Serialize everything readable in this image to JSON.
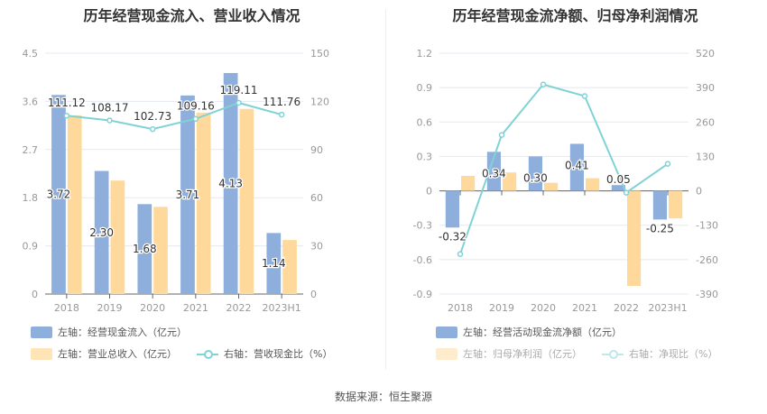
{
  "footer": "数据来源：恒生聚源",
  "chart_data": [
    {
      "type": "bar",
      "title": "历年经营现金流入、营业收入情况",
      "categories": [
        "2018",
        "2019",
        "2020",
        "2021",
        "2022",
        "2023H1"
      ],
      "y_left": {
        "range": [
          0,
          4.5
        ],
        "ticks": [
          "0",
          "0.9",
          "1.8",
          "2.7",
          "3.6",
          "4.5"
        ]
      },
      "y_right": {
        "range": [
          0,
          150
        ],
        "ticks": [
          "0",
          "30",
          "60",
          "90",
          "120",
          "150"
        ]
      },
      "grid": true,
      "legend_placement": "bottom-left",
      "series": [
        {
          "name": "左轴：经营现金流入（亿元）",
          "axis": "left",
          "kind": "bar",
          "color": "#8eaedc",
          "values": [
            3.72,
            2.3,
            1.68,
            3.71,
            4.13,
            1.14
          ],
          "labels": [
            "3.72",
            "2.30",
            "1.68",
            "3.71",
            "4.13",
            "1.14"
          ]
        },
        {
          "name": "左轴：营业总收入（亿元）",
          "axis": "left",
          "kind": "bar",
          "color": "#ffd99b",
          "values": [
            3.34,
            2.12,
            1.63,
            3.39,
            3.46,
            1.01
          ]
        },
        {
          "name": "右轴：营收现金比（%）",
          "axis": "right",
          "kind": "line",
          "color": "#7fd3d6",
          "values": [
            111.12,
            108.17,
            102.73,
            109.16,
            119.11,
            111.76
          ],
          "labels": [
            "111.12",
            "108.17",
            "102.73",
            "109.16",
            "119.11",
            "111.76"
          ]
        }
      ]
    },
    {
      "type": "bar",
      "title": "历年经营现金流净额、归母净利润情况",
      "categories": [
        "2018",
        "2019",
        "2020",
        "2021",
        "2022",
        "2023H1"
      ],
      "y_left": {
        "range": [
          -0.9,
          1.2
        ],
        "ticks": [
          "-0.9",
          "-0.6",
          "-0.3",
          "0",
          "0.3",
          "0.6",
          "0.9",
          "1.2"
        ]
      },
      "y_right": {
        "range": [
          -390,
          520
        ],
        "ticks": [
          "-390",
          "-260",
          "-130",
          "0",
          "130",
          "260",
          "390",
          "520"
        ]
      },
      "grid": true,
      "legend_placement": "bottom-left",
      "series": [
        {
          "name": "左轴：经营活动现金流净额（亿元）",
          "axis": "left",
          "kind": "bar",
          "color": "#8eaedc",
          "values": [
            -0.32,
            0.34,
            0.3,
            0.41,
            0.05,
            -0.25
          ],
          "labels": [
            "-0.32",
            "0.34",
            "0.30",
            "0.41",
            "0.05",
            "-0.25"
          ]
        },
        {
          "name": "左轴：归母净利润（亿元）",
          "axis": "left",
          "kind": "bar",
          "color": "#ffd99b",
          "values": [
            0.13,
            0.16,
            0.07,
            0.11,
            -0.83,
            -0.24
          ]
        },
        {
          "name": "右轴：净现比（%）",
          "axis": "right",
          "kind": "line",
          "color": "#7fd3d6",
          "values": [
            -239,
            211,
            402,
            358,
            -7,
            102
          ]
        }
      ]
    }
  ]
}
